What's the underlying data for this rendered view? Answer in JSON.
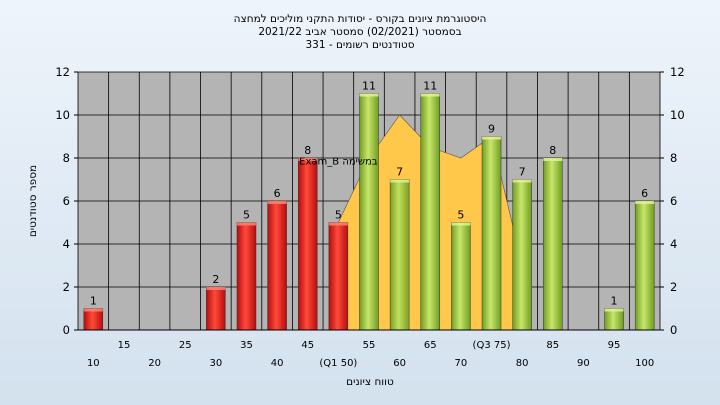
{
  "chart_data": {
    "type": "bar",
    "title_lines": [
      "היסטוגרמת ציונים בקורס - יסודות התקני מוליכים למחצה",
      "בסמסטר  (02/2021)  סמסטר אביב 2021/22",
      "סטודנטים רשומים - 331"
    ],
    "xlabel": "טווח ציונים",
    "ylabel": "מספר סטודנטים",
    "ylim": [
      0,
      12
    ],
    "yticks": [
      0,
      2,
      4,
      6,
      8,
      10,
      12
    ],
    "categories": [
      "10",
      "15",
      "20",
      "25",
      "30",
      "35",
      "40",
      "45",
      "50",
      "55",
      "60",
      "65",
      "70",
      "75",
      "80",
      "85",
      "90",
      "95",
      "100"
    ],
    "x_tick_labels_row1": [
      "",
      "15",
      "",
      "25",
      "",
      "35",
      "",
      "45",
      "",
      "55",
      "",
      "65",
      "",
      "(Q3 75)",
      "",
      "85",
      "",
      "95",
      ""
    ],
    "x_tick_labels_row2": [
      "10",
      "",
      "20",
      "",
      "30",
      "",
      "40",
      "",
      "(Q1 50)",
      "",
      "60",
      "",
      "70",
      "",
      "80",
      "",
      "90",
      "",
      "100"
    ],
    "values": [
      1,
      0,
      0,
      0,
      2,
      5,
      6,
      8,
      5,
      11,
      7,
      11,
      5,
      9,
      7,
      8,
      0,
      1,
      6
    ],
    "value_labels": [
      "1",
      "",
      "",
      "",
      "2",
      "5",
      "6",
      "8",
      "5",
      "11",
      "7",
      "11",
      "5",
      "9",
      "7",
      "8",
      "",
      "1",
      "6"
    ],
    "bar_colors": [
      "red",
      "red",
      "red",
      "red",
      "red",
      "red",
      "red",
      "red",
      "red",
      "green",
      "yellow",
      "green",
      "green",
      "green",
      "green",
      "green",
      "green",
      "green",
      "green"
    ],
    "area_series": {
      "name": "Exam_B",
      "label": "Exam_B במשימה",
      "x": [
        "50",
        "55",
        "60",
        "65",
        "70",
        "75",
        "80"
      ],
      "values": [
        5,
        8,
        10,
        8.5,
        8,
        9,
        3
      ]
    },
    "colors": {
      "red": "#d91a1a",
      "green": "#8ec03b",
      "yellow": "#a6c43a",
      "area": "#ffc84a",
      "plot_bg": "#b4b4b4",
      "grid": "#000000"
    },
    "grid": true
  }
}
